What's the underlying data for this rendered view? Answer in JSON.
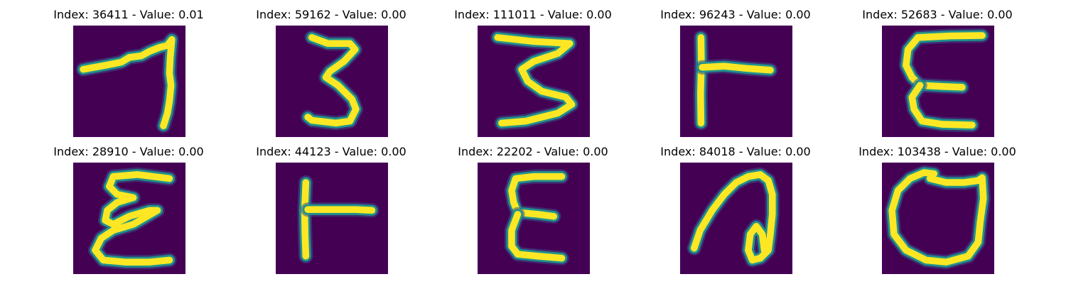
{
  "colors": {
    "background": "#440154",
    "stroke": "#fde725",
    "edge": "#21918c",
    "edge_soft": "#3b528b"
  },
  "panels": [
    {
      "title": "Index: 36411 - Value: 0.01",
      "glyph": "seven-like stroke"
    },
    {
      "title": "Index: 59162 - Value: 0.00",
      "glyph": "three-like stroke"
    },
    {
      "title": "Index: 111011 - Value: 0.00",
      "glyph": "three-like stroke"
    },
    {
      "title": "Index: 96243 - Value: 0.00",
      "glyph": "t-like stroke"
    },
    {
      "title": "Index: 52683 - Value: 0.00",
      "glyph": "e-like stroke"
    },
    {
      "title": "Index: 28910 - Value: 0.00",
      "glyph": "e-like stroke"
    },
    {
      "title": "Index: 44123 - Value: 0.00",
      "glyph": "t-like stroke"
    },
    {
      "title": "Index: 22202 - Value: 0.00",
      "glyph": "e-like stroke"
    },
    {
      "title": "Index: 84018 - Value: 0.00",
      "glyph": "loop stroke"
    },
    {
      "title": "Index: 103438 - Value: 0.00",
      "glyph": "o-like stroke"
    }
  ]
}
